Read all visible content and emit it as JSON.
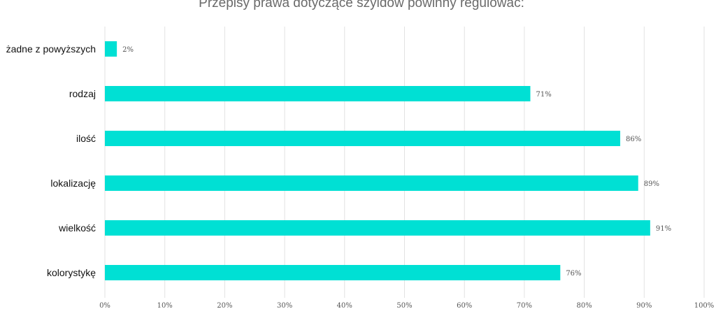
{
  "chart_data": {
    "type": "bar",
    "orientation": "horizontal",
    "title": "Przepisy prawa dotyczące szyldów powinny regulować:",
    "categories": [
      "żadne z powyższych",
      "rodzaj",
      "ilość",
      "lokalizację",
      "wielkość",
      "kolorystykę"
    ],
    "values": [
      2,
      71,
      86,
      89,
      91,
      76
    ],
    "value_labels": [
      "2%",
      "71%",
      "86%",
      "89%",
      "91%",
      "76%"
    ],
    "x_ticks": [
      "0%",
      "10%",
      "20%",
      "30%",
      "40%",
      "50%",
      "60%",
      "70%",
      "80%",
      "90%",
      "100%"
    ],
    "xlim": [
      0,
      100
    ],
    "bar_color": "#00e0d4",
    "grid": true,
    "legend": "none"
  }
}
